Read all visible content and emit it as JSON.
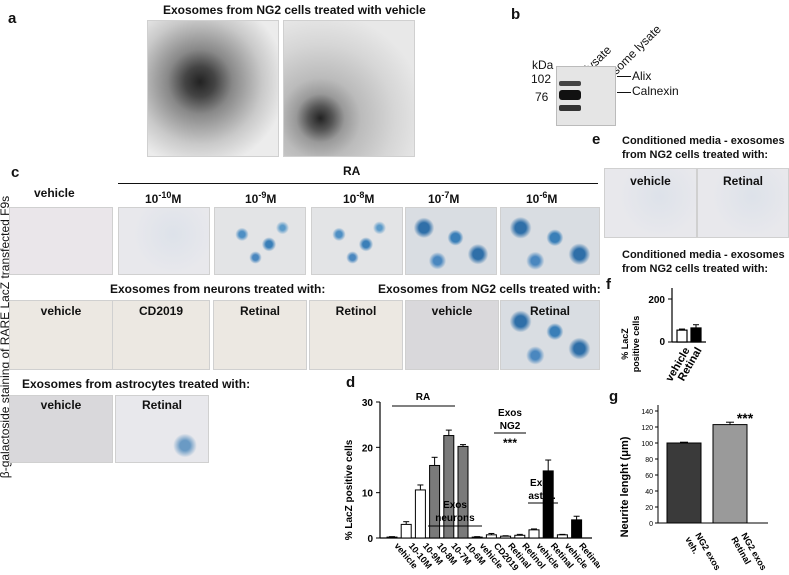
{
  "panels": {
    "a": {
      "letter": "a",
      "title": "Exosomes from NG2 cells treated with vehicle"
    },
    "b": {
      "letter": "b",
      "kda": "kDa",
      "lane1": "Cell lysate",
      "lane2": "Exosome lysate",
      "m102": "102",
      "m76": "76",
      "alix": "Alix",
      "calnexin": "Calnexin"
    },
    "c": {
      "letter": "c",
      "ylabel": "β-galactoside staining of RARE LacZ transfected F9s",
      "ra": "RA",
      "vehicle": "vehicle",
      "conc": [
        "10",
        "-10",
        "M",
        "10",
        "-9",
        "M",
        "10",
        "-8",
        "M",
        "10",
        "-7",
        "M",
        "10",
        "-6",
        "M"
      ],
      "neurons_title": "Exosomes from neurons treated with:",
      "ng2_title": "Exosomes from NG2 cells treated with:",
      "astro_title": "Exosomes from astrocytes treated with:",
      "row2": [
        "vehicle",
        "CD2019",
        "Retinal",
        "Retinol",
        "vehicle",
        "Retinal"
      ],
      "row3": [
        "vehicle",
        "Retinal"
      ]
    },
    "e": {
      "letter": "e",
      "title1": "Conditioned media - exosomes",
      "title2": "from NG2 cells treated with:",
      "cap1": "vehicle",
      "cap2": "Retinal"
    },
    "f": {
      "letter": "f",
      "title1": "Conditioned media - exosomes",
      "title2": "from NG2 cells treated with:",
      "ylabel1": "% LacZ",
      "ylabel2": "positive cells",
      "tick0": "0",
      "tick200": "200",
      "x1": "vehicle",
      "x2": "Retinal"
    },
    "g": {
      "letter": "g",
      "ylabel": "Neurite lenght (μm)",
      "stars": "***",
      "x1a": "NG2 exos",
      "x1b": "veh.",
      "x2a": "NG2 exos",
      "x2b": "Retinal"
    },
    "d": {
      "letter": "d",
      "ylabel": "% LacZ positive cells",
      "ra": "RA",
      "exos_ng2_1": "Exos",
      "exos_ng2_2": "NG2",
      "stars": "***",
      "exos_neurons_1": "Exos",
      "exos_neurons_2": "neurons",
      "exos_astro_1": "Exos",
      "exos_astro_2": "astro."
    }
  },
  "chart_data": [
    {
      "type": "bar",
      "panel": "d",
      "ylabel": "% LacZ positive cells",
      "ylim": [
        0,
        30
      ],
      "yticks": [
        0,
        10,
        20,
        30
      ],
      "categories": [
        "vehicle",
        "10-10M",
        "10-9M",
        "10-8M",
        "10-7M",
        "10-6M",
        "vehicle",
        "CD2019",
        "Retinal",
        "Retinol",
        "vehicle",
        "Retinal",
        "vehicle",
        "Retinal"
      ],
      "values": [
        0.2,
        3.0,
        10.6,
        16.0,
        22.6,
        20.2,
        0.2,
        0.7,
        0.4,
        0.6,
        1.8,
        14.8,
        0.7,
        4.0
      ],
      "errors": [
        0.1,
        0.6,
        1.1,
        1.8,
        1.2,
        0.4,
        0.1,
        0.3,
        0.1,
        0.2,
        0.2,
        2.4,
        0.1,
        0.8
      ],
      "fills": [
        "#ffffff",
        "#ffffff",
        "#ffffff",
        "#7a7a7a",
        "#7a7a7a",
        "#7a7a7a",
        "#ffffff",
        "#ffffff",
        "#ffffff",
        "#ffffff",
        "#ffffff",
        "#000000",
        "#ffffff",
        "#000000"
      ]
    },
    {
      "type": "bar",
      "panel": "f",
      "ylabel": "% LacZ positive cells",
      "ylim": [
        0,
        250
      ],
      "yticks": [
        0,
        200
      ],
      "categories": [
        "vehicle",
        "Retinal"
      ],
      "values": [
        55,
        65
      ],
      "errors": [
        5,
        15
      ],
      "fills": [
        "#ffffff",
        "#000000"
      ]
    },
    {
      "type": "bar",
      "panel": "g",
      "ylabel": "Neurite lenght (μm)",
      "ylim": [
        0,
        140
      ],
      "yticks": [
        0,
        20,
        40,
        60,
        80,
        100,
        120,
        140
      ],
      "categories": [
        "NG2 exos veh.",
        "NG2 exos Retinal"
      ],
      "values": [
        100,
        123
      ],
      "errors": [
        1,
        3
      ],
      "fills": [
        "#3a3a3a",
        "#9a9a9a"
      ]
    }
  ]
}
